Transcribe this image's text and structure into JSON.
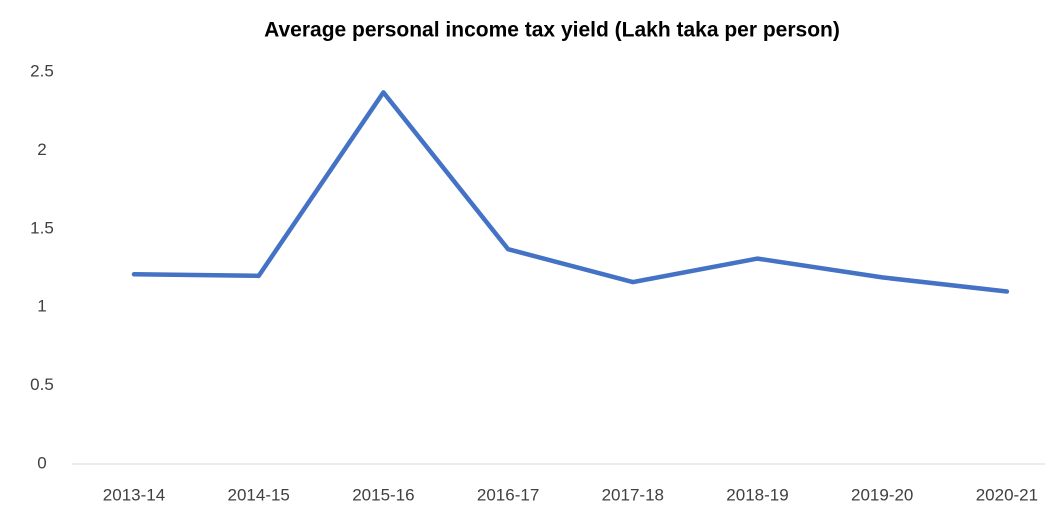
{
  "chart_data": {
    "type": "line",
    "title": "Average personal income tax yield (Lakh taka per person)",
    "categories": [
      "2013-14",
      "2014-15",
      "2015-16",
      "2016-17",
      "2017-18",
      "2018-19",
      "2019-20",
      "2020-21"
    ],
    "series": [
      {
        "name": "Average personal income tax yield",
        "color": "#4472c4",
        "values": [
          1.21,
          1.2,
          2.37,
          1.37,
          1.16,
          1.31,
          1.19,
          1.1
        ]
      }
    ],
    "ylim": [
      0,
      2.5
    ],
    "yticks": [
      0,
      0.5,
      1,
      1.5,
      2,
      2.5
    ],
    "grid": false
  }
}
